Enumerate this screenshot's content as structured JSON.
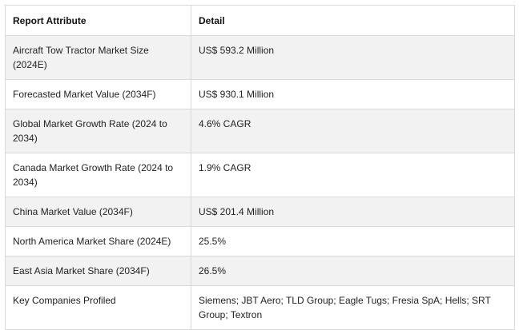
{
  "table": {
    "headers": [
      "Report Attribute",
      "Detail"
    ],
    "rows": [
      {
        "attribute": "Aircraft Tow Tractor Market Size (2024E)",
        "detail": "US$ 593.2 Million"
      },
      {
        "attribute": "Forecasted Market Value (2034F)",
        "detail": "US$ 930.1 Million"
      },
      {
        "attribute": "Global Market Growth Rate (2024 to 2034)",
        "detail": "4.6% CAGR"
      },
      {
        "attribute": "Canada Market Growth Rate (2024 to 2034)",
        "detail": "1.9% CAGR"
      },
      {
        "attribute": "China Market Value (2034F)",
        "detail": "US$ 201.4 Million"
      },
      {
        "attribute": "North America Market Share (2024E)",
        "detail": "25.5%"
      },
      {
        "attribute": "East Asia Market Share (2034F)",
        "detail": "26.5%"
      },
      {
        "attribute": "Key Companies Profiled",
        "detail": "Siemens; JBT Aero; TLD Group; Eagle Tugs; Fresia SpA; Hells; SRT Group; Textron"
      }
    ]
  }
}
